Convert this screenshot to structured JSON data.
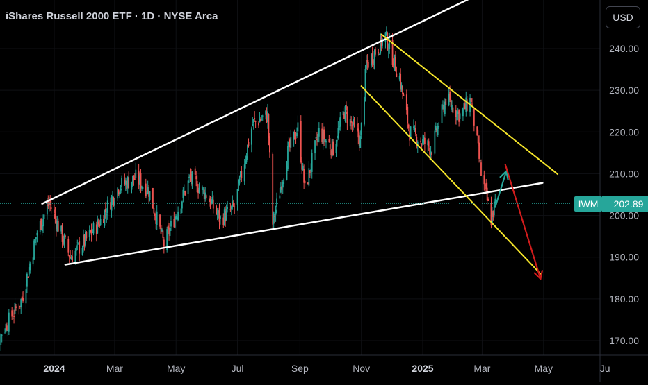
{
  "header": {
    "title": "iShares Russell 2000 ETF · 1D · NYSE Arca",
    "currency": "USD"
  },
  "price_badge": {
    "symbol": "IWM",
    "value": "202.89",
    "color": "#26a69a"
  },
  "colors": {
    "background": "#000000",
    "up": "#26a69a",
    "down": "#ef5350",
    "trendline": "#ffffff",
    "channel": "#f5e52a",
    "arrow_up": "#26a69a",
    "arrow_down": "#d01c1c"
  },
  "chart_data": {
    "type": "candlestick",
    "title": "iShares Russell 2000 ETF · 1D · NYSE Arca",
    "ylim": [
      166,
      252
    ],
    "y_ticks": [
      "170.00",
      "180.00",
      "190.00",
      "200.00",
      "210.00",
      "220.00",
      "230.00",
      "240.00"
    ],
    "x_ticks": [
      {
        "label": "2024",
        "bold": true
      },
      {
        "label": "Mar",
        "bold": false
      },
      {
        "label": "May",
        "bold": false
      },
      {
        "label": "Jul",
        "bold": false
      },
      {
        "label": "Sep",
        "bold": false
      },
      {
        "label": "Nov",
        "bold": false
      },
      {
        "label": "2025",
        "bold": true
      },
      {
        "label": "Mar",
        "bold": false
      },
      {
        "label": "May",
        "bold": false
      },
      {
        "label": "Ju",
        "bold": false
      }
    ],
    "last_price": 202.89,
    "price_path": [
      [
        "2023-10-27",
        162.0
      ],
      [
        "2023-11-10",
        172.0
      ],
      [
        "2023-11-30",
        180.0
      ],
      [
        "2023-12-15",
        196.0
      ],
      [
        "2023-12-27",
        203.0
      ],
      [
        "2024-01-17",
        190.0
      ],
      [
        "2024-02-01",
        194.0
      ],
      [
        "2024-02-14",
        198.0
      ],
      [
        "2024-03-05",
        207.0
      ],
      [
        "2024-03-22",
        209.0
      ],
      [
        "2024-04-04",
        206.0
      ],
      [
        "2024-04-19",
        193.0
      ],
      [
        "2024-05-15",
        209.0
      ],
      [
        "2024-05-31",
        205.0
      ],
      [
        "2024-06-14",
        199.0
      ],
      [
        "2024-06-28",
        202.0
      ],
      [
        "2024-07-16",
        222.0
      ],
      [
        "2024-07-31",
        224.0
      ],
      [
        "2024-08-05",
        198.0
      ],
      [
        "2024-08-20",
        215.0
      ],
      [
        "2024-08-30",
        221.0
      ],
      [
        "2024-09-06",
        206.0
      ],
      [
        "2024-09-20",
        220.0
      ],
      [
        "2024-10-04",
        216.0
      ],
      [
        "2024-10-15",
        225.0
      ],
      [
        "2024-10-31",
        218.0
      ],
      [
        "2024-11-06",
        236.0
      ],
      [
        "2024-11-25",
        243.0
      ],
      [
        "2024-12-09",
        233.0
      ],
      [
        "2024-12-19",
        220.0
      ],
      [
        "2025-01-10",
        216.0
      ],
      [
        "2025-01-24",
        228.0
      ],
      [
        "2025-02-07",
        224.0
      ],
      [
        "2025-02-18",
        228.0
      ],
      [
        "2025-02-28",
        210.0
      ],
      [
        "2025-03-10",
        199.0
      ],
      [
        "2025-03-14",
        202.89
      ]
    ],
    "annotations": {
      "wedge_upper": [
        [
          "2023-12-20",
          202.8
        ],
        [
          "2025-02-17",
          252.0
        ]
      ],
      "wedge_lower": [
        [
          "2024-01-12",
          188.2
        ],
        [
          "2025-04-30",
          207.8
        ]
      ],
      "channel_upper": [
        [
          "2024-11-21",
          243.4
        ],
        [
          "2025-05-15",
          209.9
        ]
      ],
      "channel_lower": [
        [
          "2024-11-01",
          231.0
        ],
        [
          "2025-04-28",
          186.0
        ]
      ],
      "arrow_green": [
        [
          "2025-03-14",
          202.0
        ],
        [
          "2025-03-25",
          210.6
        ]
      ],
      "arrow_red": [
        [
          "2025-03-24",
          212.2
        ],
        [
          "2025-04-28",
          184.8
        ]
      ]
    }
  }
}
